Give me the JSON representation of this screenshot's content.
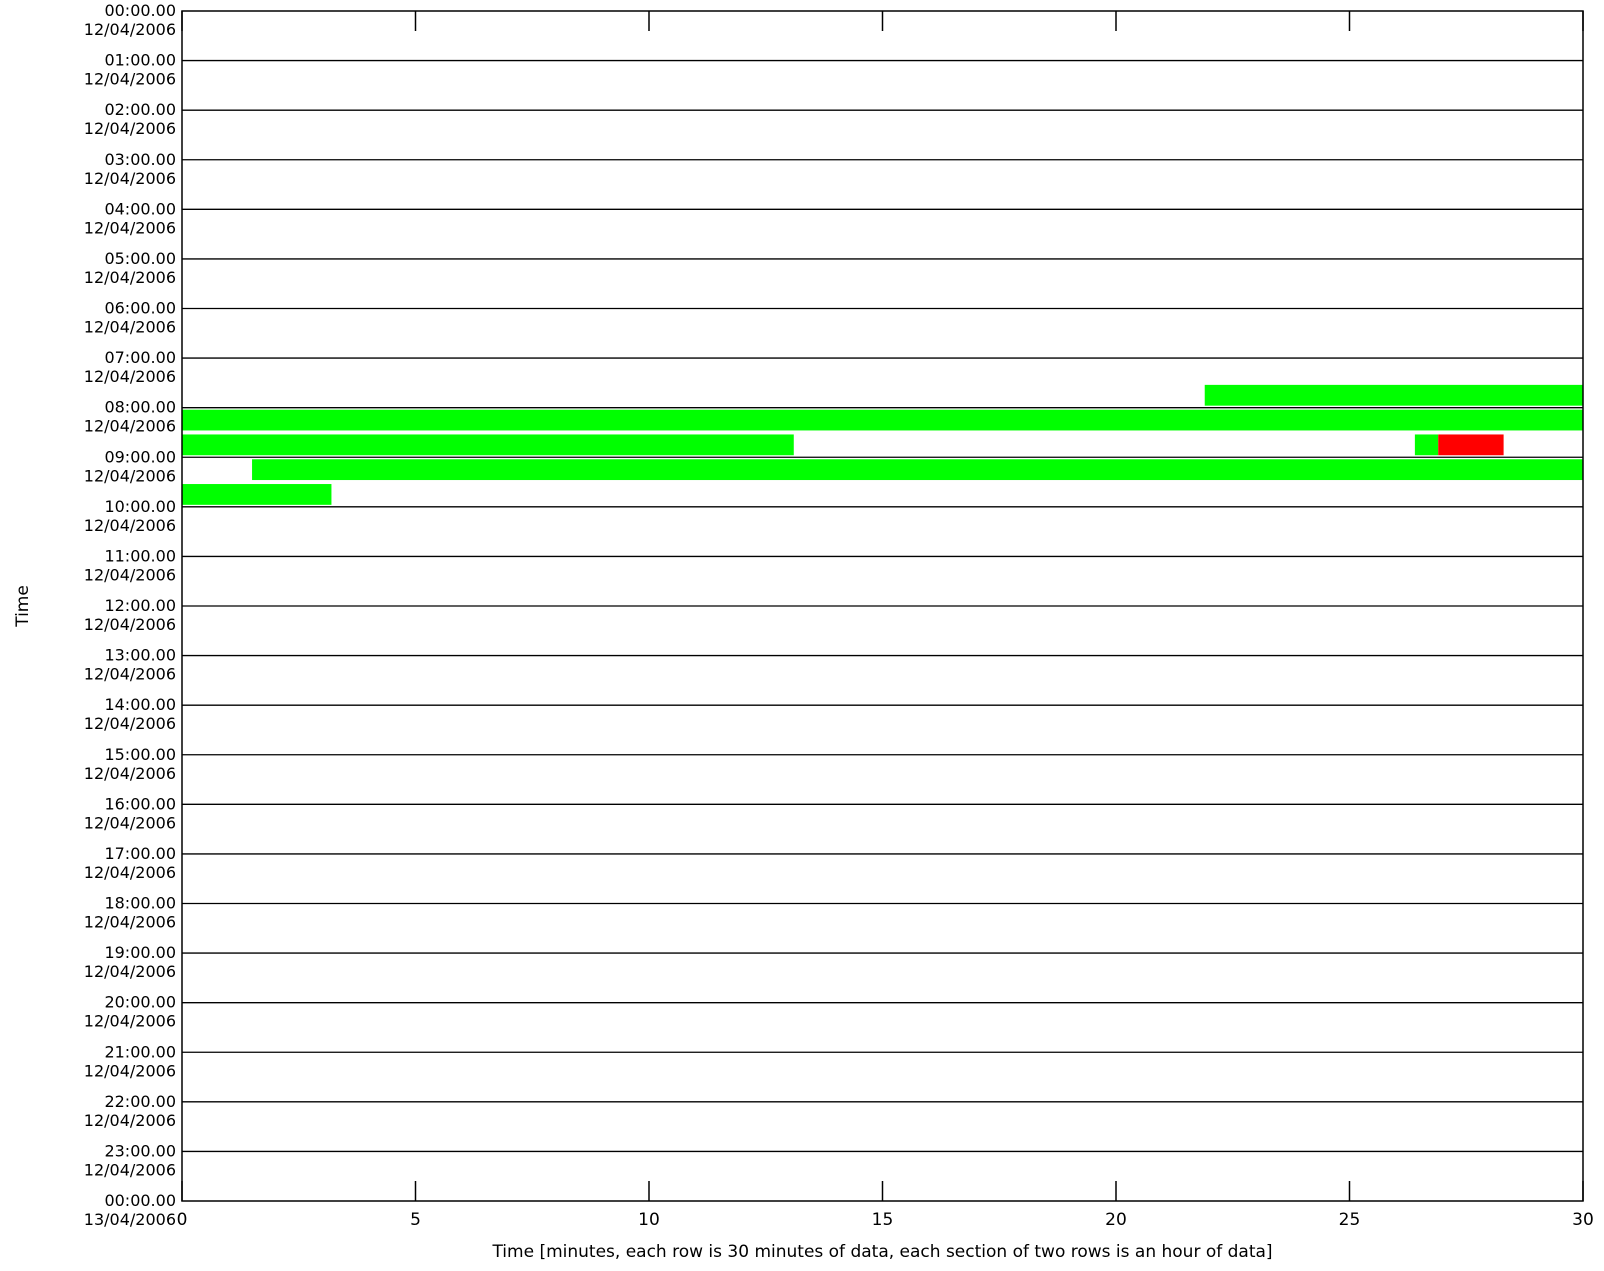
{
  "chart_data": {
    "type": "bar",
    "title": "",
    "xlabel": "Time [minutes, each row is 30 minutes of data, each section of two rows is an hour of data]",
    "ylabel": "Time",
    "xlim": [
      0,
      30
    ],
    "x_ticks": [
      "0",
      "5",
      "10",
      "15",
      "20",
      "25",
      "30"
    ],
    "row_minutes": 30,
    "hour_sections": [
      {
        "time": "00:00.00",
        "date": "12/04/2006"
      },
      {
        "time": "01:00.00",
        "date": "12/04/2006"
      },
      {
        "time": "02:00.00",
        "date": "12/04/2006"
      },
      {
        "time": "03:00.00",
        "date": "12/04/2006"
      },
      {
        "time": "04:00.00",
        "date": "12/04/2006"
      },
      {
        "time": "05:00.00",
        "date": "12/04/2006"
      },
      {
        "time": "06:00.00",
        "date": "12/04/2006"
      },
      {
        "time": "07:00.00",
        "date": "12/04/2006"
      },
      {
        "time": "08:00.00",
        "date": "12/04/2006"
      },
      {
        "time": "09:00.00",
        "date": "12/04/2006"
      },
      {
        "time": "10:00.00",
        "date": "12/04/2006"
      },
      {
        "time": "11:00.00",
        "date": "12/04/2006"
      },
      {
        "time": "12:00.00",
        "date": "12/04/2006"
      },
      {
        "time": "13:00.00",
        "date": "12/04/2006"
      },
      {
        "time": "14:00.00",
        "date": "12/04/2006"
      },
      {
        "time": "15:00.00",
        "date": "12/04/2006"
      },
      {
        "time": "16:00.00",
        "date": "12/04/2006"
      },
      {
        "time": "17:00.00",
        "date": "12/04/2006"
      },
      {
        "time": "18:00.00",
        "date": "12/04/2006"
      },
      {
        "time": "19:00.00",
        "date": "12/04/2006"
      },
      {
        "time": "20:00.00",
        "date": "12/04/2006"
      },
      {
        "time": "21:00.00",
        "date": "12/04/2006"
      },
      {
        "time": "22:00.00",
        "date": "12/04/2006"
      },
      {
        "time": "23:00.00",
        "date": "12/04/2006"
      },
      {
        "time": "00:00.00",
        "date": "13/04/2006"
      }
    ],
    "colors": {
      "green": "#00ff00",
      "red": "#ff0000"
    },
    "segments": [
      {
        "row": "07:30",
        "start": 21.9,
        "end": 30.0,
        "color": "green"
      },
      {
        "row": "08:00",
        "start": 0.0,
        "end": 30.0,
        "color": "green"
      },
      {
        "row": "08:30",
        "start": 0.0,
        "end": 13.1,
        "color": "green"
      },
      {
        "row": "08:30",
        "start": 26.4,
        "end": 26.9,
        "color": "green"
      },
      {
        "row": "08:30",
        "start": 26.9,
        "end": 28.3,
        "color": "red"
      },
      {
        "row": "09:00",
        "start": 1.5,
        "end": 30.0,
        "color": "green"
      },
      {
        "row": "09:30",
        "start": 0.0,
        "end": 3.2,
        "color": "green"
      }
    ]
  }
}
